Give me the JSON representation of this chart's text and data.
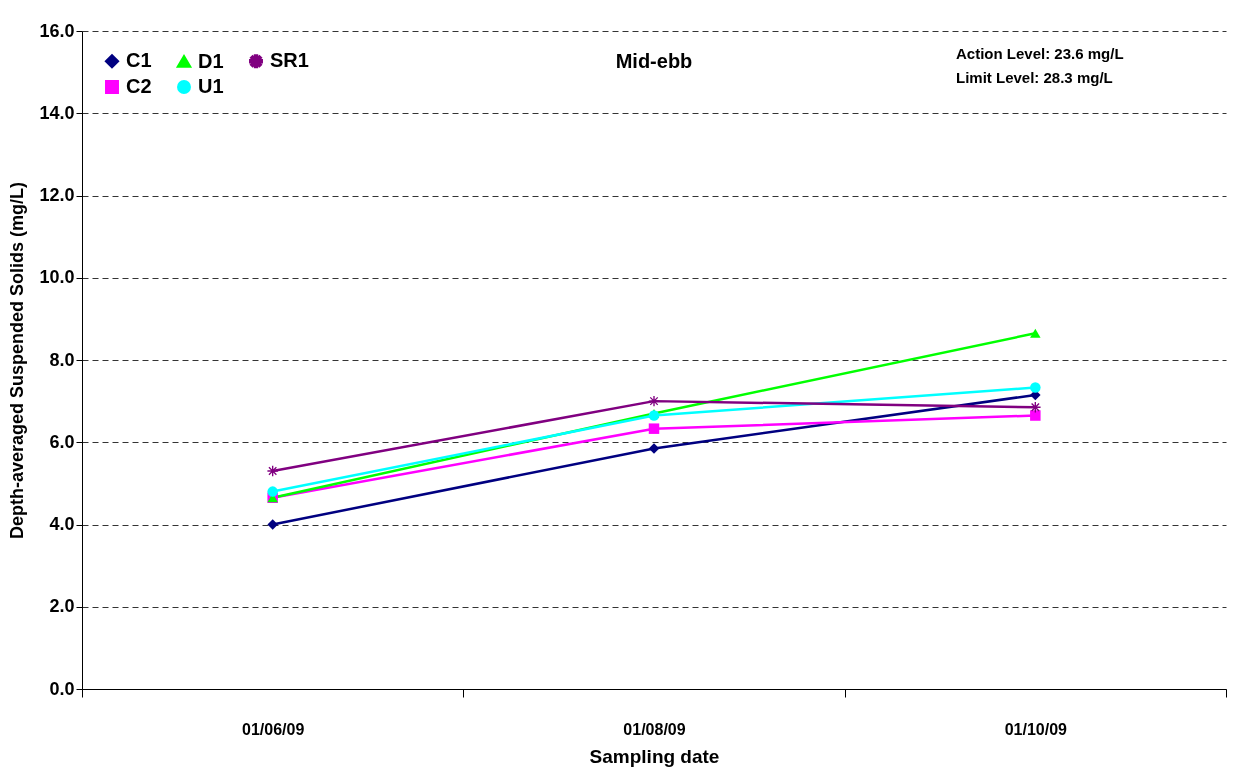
{
  "chart_data": {
    "type": "line",
    "title": "Mid-ebb",
    "xlabel": "Sampling date",
    "ylabel": "Depth-averaged Suspended Solids (mg/L)",
    "categories": [
      "01/06/09",
      "01/08/09",
      "01/10/09"
    ],
    "series": [
      {
        "name": "C1",
        "color": "#000080",
        "marker": "diamond",
        "values": [
          4.0,
          5.85,
          7.15
        ]
      },
      {
        "name": "C2",
        "color": "#ff00ff",
        "marker": "square",
        "values": [
          4.65,
          6.33,
          6.65
        ]
      },
      {
        "name": "D1",
        "color": "#00ff00",
        "marker": "triangle",
        "values": [
          4.65,
          6.7,
          8.65
        ]
      },
      {
        "name": "U1",
        "color": "#00ffff",
        "marker": "circle",
        "values": [
          4.8,
          6.65,
          7.33
        ]
      },
      {
        "name": "SR1",
        "color": "#800080",
        "marker": "star",
        "values": [
          5.3,
          7.0,
          6.85
        ]
      }
    ],
    "ylim": [
      0,
      16
    ],
    "yticks": [
      {
        "value": 0,
        "label": "0.0"
      },
      {
        "value": 2,
        "label": "2.0"
      },
      {
        "value": 4,
        "label": "4.0"
      },
      {
        "value": 6,
        "label": "6.0"
      },
      {
        "value": 8,
        "label": "8.0"
      },
      {
        "value": 10,
        "label": "10.0"
      },
      {
        "value": 12,
        "label": "12.0"
      },
      {
        "value": 14,
        "label": "14.0"
      },
      {
        "value": 16,
        "label": "16.0"
      }
    ],
    "grid": "y",
    "legend": "top left",
    "line_style": "solid",
    "annotations": [
      "Action Level: 23.6 mg/L",
      "Limit Level: 28.3 mg/L"
    ]
  }
}
